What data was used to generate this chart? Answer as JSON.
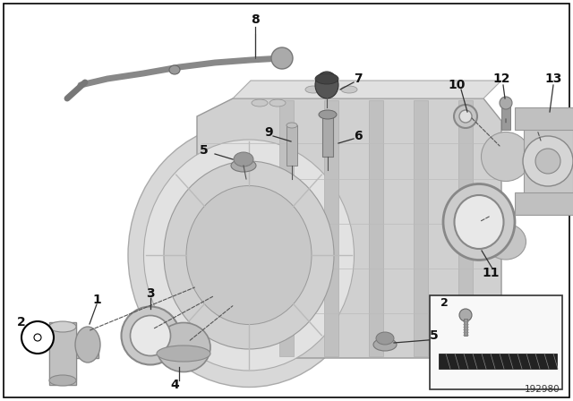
{
  "background_color": "#ffffff",
  "diagram_id": "192980",
  "font_size_label": 10,
  "gearbox_color": "#d4d4d4",
  "gearbox_edge": "#999999",
  "part_color": "#b8b8b8",
  "part_edge": "#777777"
}
